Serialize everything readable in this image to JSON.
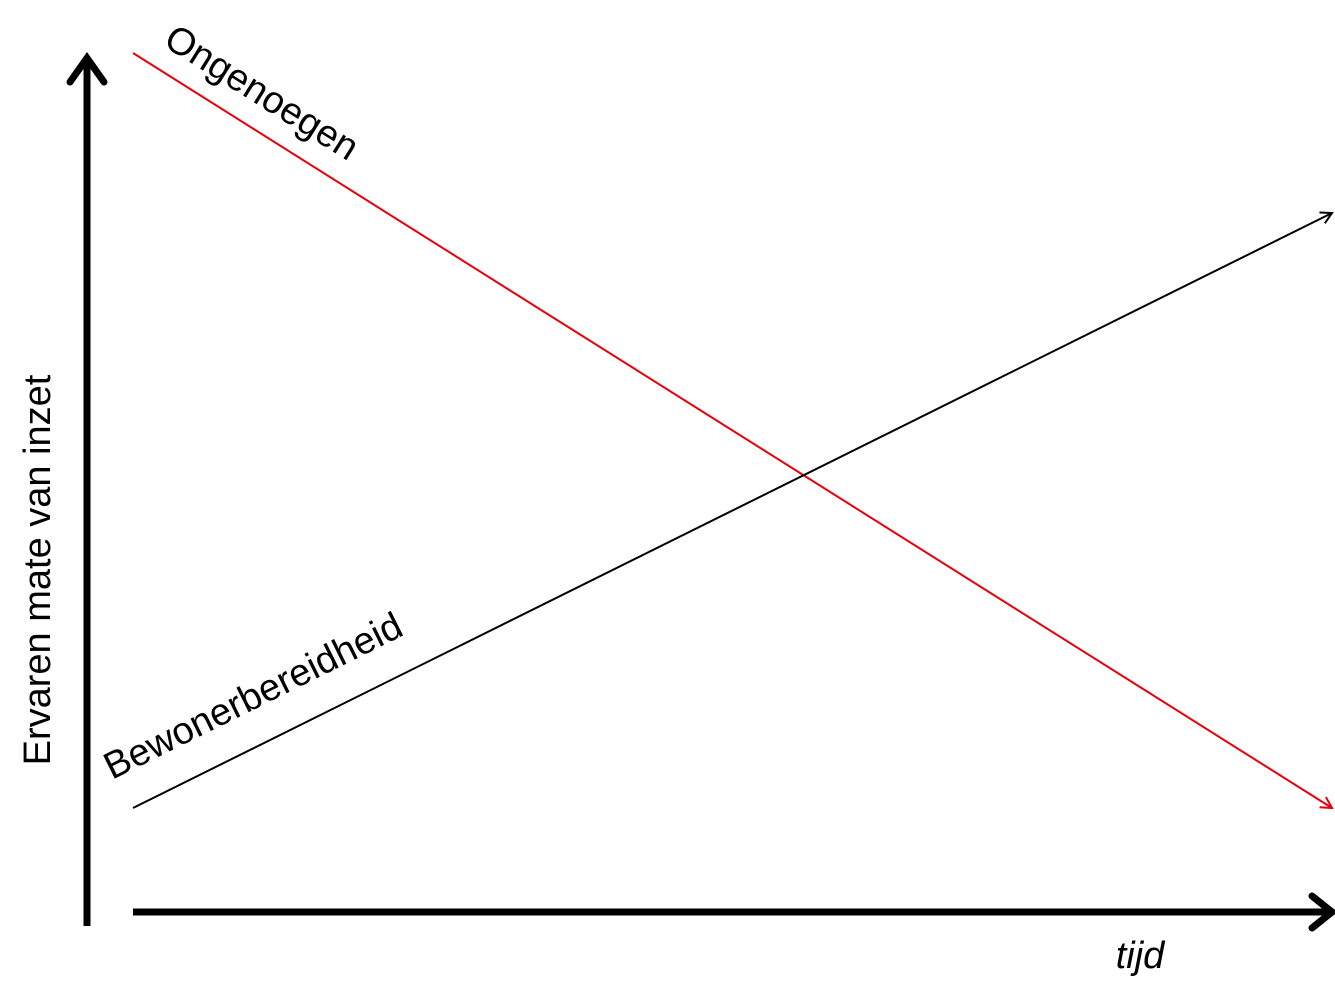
{
  "axes": {
    "y_label": "Ervaren mate van inzet",
    "x_label": "tijd"
  },
  "lines": [
    {
      "label": "Ongenoegen"
    },
    {
      "label": "Bewonerbereidheid"
    }
  ]
}
